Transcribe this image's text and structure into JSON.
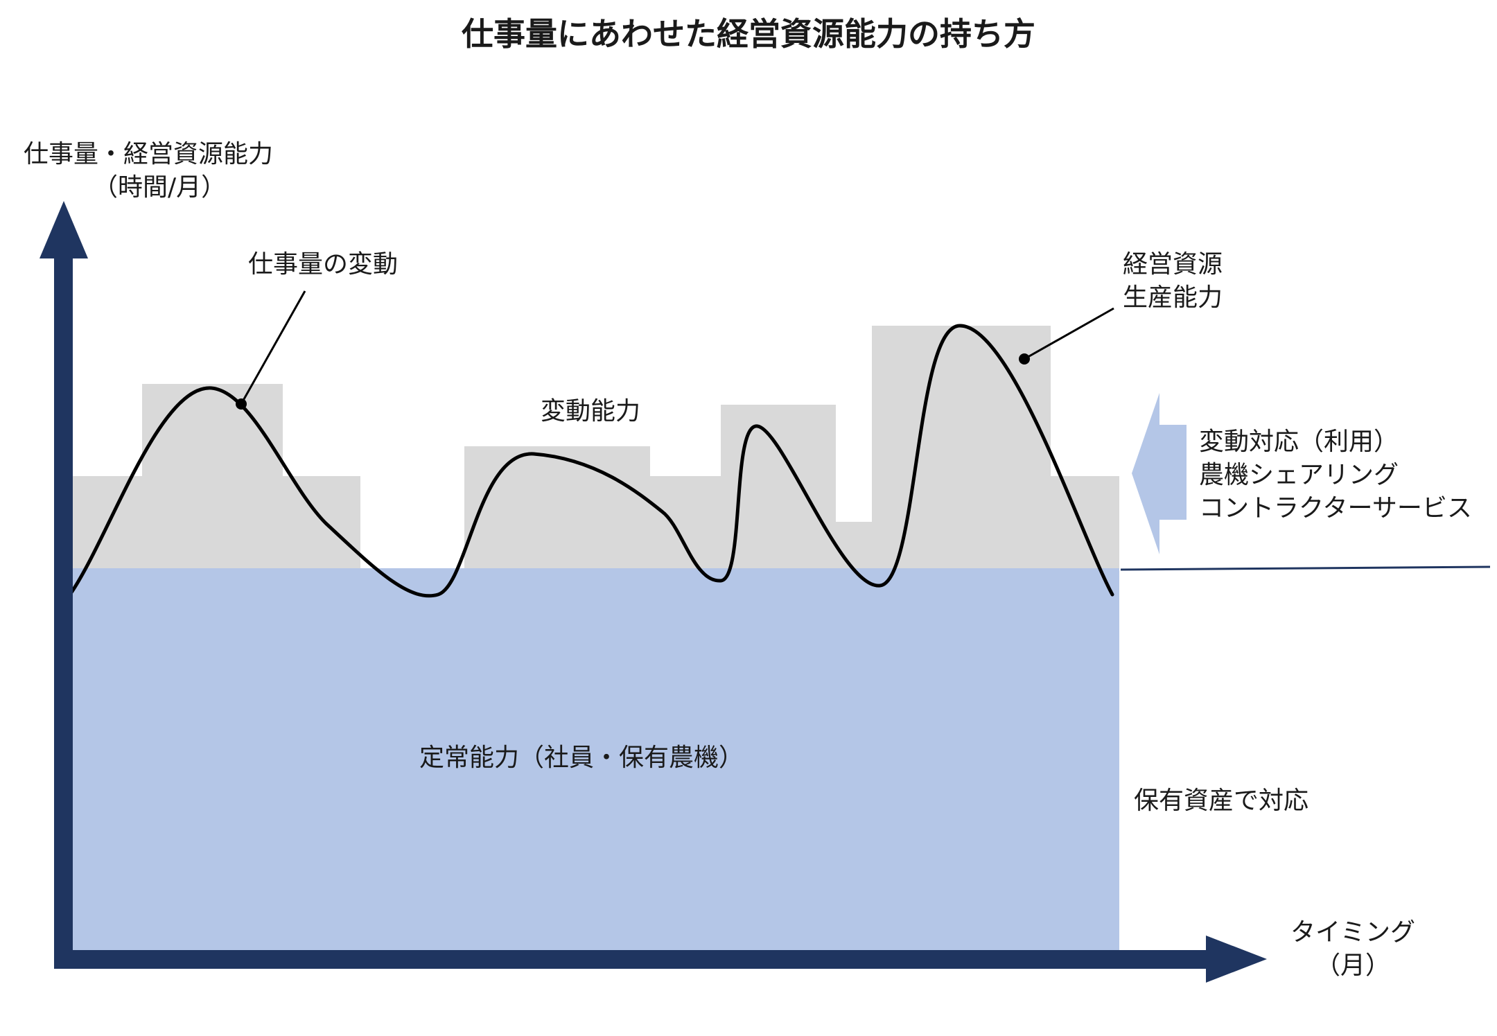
{
  "title": "仕事量にあわせた経営資源能力の持ち方",
  "y_axis": {
    "line1": "仕事量・経営資源能力",
    "line2": "（時間/月）"
  },
  "x_axis": {
    "line1": "タイミング",
    "line2": "（月）"
  },
  "labels": {
    "workload_variation": "仕事量の変動",
    "capacity": {
      "line1": "経営資源",
      "line2": "生産能力"
    },
    "variable_capacity": "変動能力",
    "fixed_capacity": "定常能力（社員・保有農機）",
    "variable_response": {
      "line1": "変動対応（利用）",
      "line2": "農機シェアリング",
      "line3": "コントラクターサービス"
    },
    "owned_response": "保有資産で対応"
  },
  "colors": {
    "axis": "#1f3560",
    "fixed_area": "#b4c6e7",
    "variable_area": "#d9d9d9",
    "curve": "#000000",
    "arrow": "#b4c6e7"
  }
}
